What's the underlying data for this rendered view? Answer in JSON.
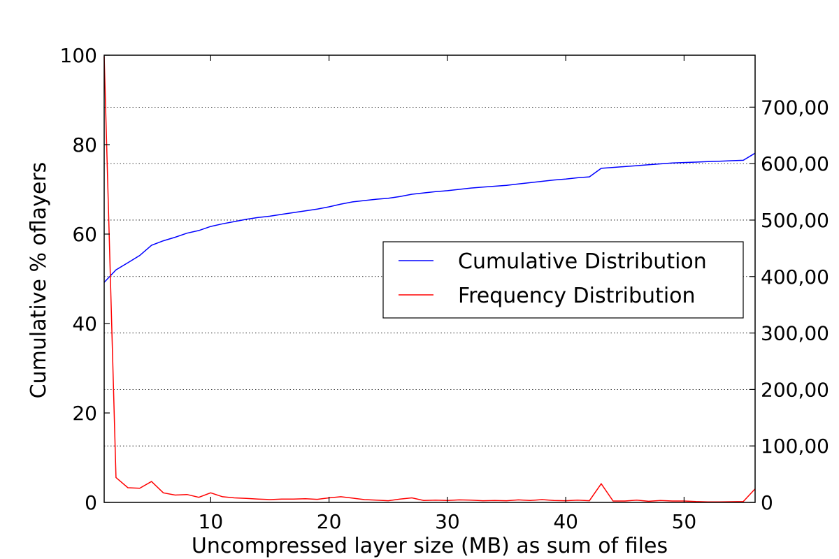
{
  "chart_data": {
    "type": "line",
    "title": "",
    "xlabel": "Uncompressed layer size (MB) as sum of files",
    "ylabel": "Cumulative % oflayers",
    "y2label": "",
    "xlim": [
      1,
      56
    ],
    "ylim": [
      0,
      100
    ],
    "y2lim": [
      0,
      792000
    ],
    "x_ticks": [
      10,
      20,
      30,
      40,
      50
    ],
    "y_ticks": [
      0,
      20,
      40,
      60,
      80,
      100
    ],
    "y2_ticks": [
      0,
      100000,
      200000,
      300000,
      400000,
      500000,
      600000,
      700000
    ],
    "x_tick_labels": [
      "10",
      "20",
      "30",
      "40",
      "50"
    ],
    "y_tick_labels": [
      "0",
      "20",
      "40",
      "60",
      "80",
      "100"
    ],
    "y2_tick_labels": [
      "0",
      "100,00",
      "200,00",
      "300,00",
      "400,00",
      "500,00",
      "600,00",
      "700,00"
    ],
    "grid": "horizontal dotted at right-axis ticks",
    "legend_position": "center-right",
    "x": [
      1,
      2,
      3,
      4,
      5,
      6,
      7,
      8,
      9,
      10,
      11,
      12,
      13,
      14,
      15,
      16,
      17,
      18,
      19,
      20,
      21,
      22,
      23,
      24,
      25,
      26,
      27,
      28,
      29,
      30,
      31,
      32,
      33,
      34,
      35,
      36,
      37,
      38,
      39,
      40,
      41,
      42,
      43,
      44,
      45,
      46,
      47,
      48,
      49,
      50,
      51,
      52,
      53,
      54,
      55,
      56
    ],
    "series": [
      {
        "name": "Cumulative Distribution",
        "axis": "left",
        "color": "#0000ff",
        "values": [
          49.2,
          52.0,
          53.6,
          55.2,
          57.5,
          58.5,
          59.3,
          60.2,
          60.8,
          61.7,
          62.3,
          62.8,
          63.3,
          63.7,
          64.0,
          64.4,
          64.8,
          65.2,
          65.6,
          66.1,
          66.7,
          67.2,
          67.5,
          67.8,
          68.0,
          68.4,
          68.9,
          69.2,
          69.5,
          69.7,
          70.0,
          70.3,
          70.5,
          70.7,
          70.9,
          71.2,
          71.5,
          71.8,
          72.1,
          72.3,
          72.6,
          72.8,
          74.7,
          74.9,
          75.1,
          75.3,
          75.5,
          75.7,
          75.9,
          76.0,
          76.1,
          76.2,
          76.3,
          76.4,
          76.5,
          78.1
        ]
      },
      {
        "name": "Frequency Distribution",
        "axis": "right",
        "color": "#ff0000",
        "values": [
          790000,
          44000,
          26000,
          25000,
          37000,
          17000,
          13000,
          14000,
          9000,
          17000,
          10000,
          8000,
          7000,
          6000,
          5000,
          6000,
          6000,
          6500,
          5500,
          8000,
          10000,
          7500,
          5000,
          4000,
          3000,
          6000,
          8000,
          3500,
          4000,
          3500,
          4500,
          4000,
          3000,
          3500,
          3000,
          4500,
          3500,
          5000,
          3500,
          3000,
          4000,
          3000,
          33000,
          2500,
          2500,
          4000,
          2000,
          3500,
          2500,
          2500,
          1500,
          1000,
          1000,
          1200,
          1500,
          24000
        ]
      }
    ]
  }
}
